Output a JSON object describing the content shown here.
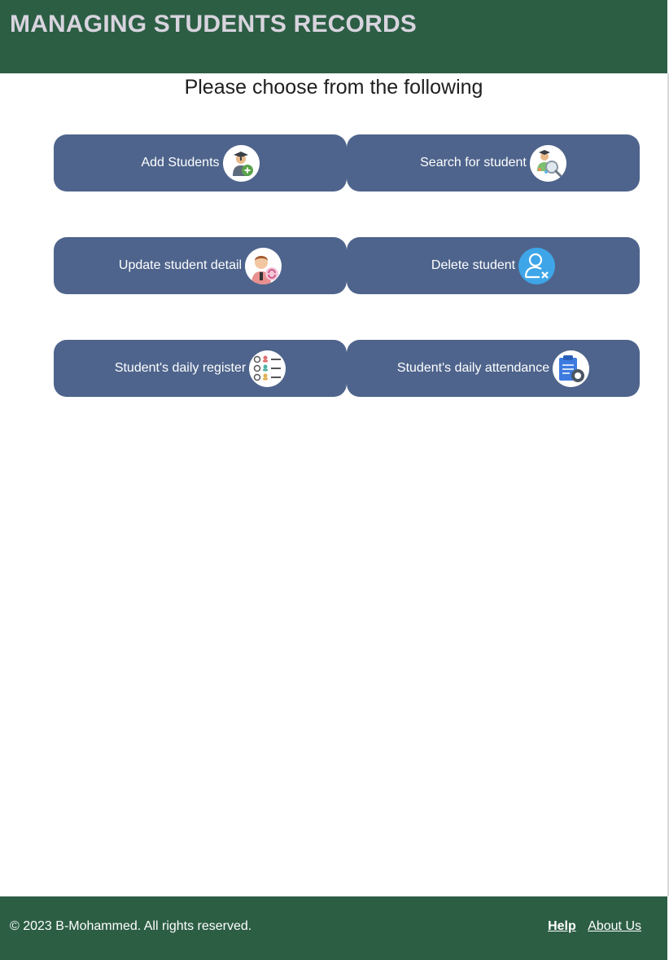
{
  "header": {
    "title": "MANAGING STUDENTS RECORDS"
  },
  "main": {
    "subtitle": "Please choose from the following",
    "buttons": [
      {
        "label": "Add Students",
        "icon": "student-add-icon"
      },
      {
        "label": "Search for student",
        "icon": "student-search-icon"
      },
      {
        "label": "Update student detail",
        "icon": "student-update-icon"
      },
      {
        "label": "Delete student",
        "icon": "user-delete-icon"
      },
      {
        "label": "Student's daily register",
        "icon": "checklist-icon"
      },
      {
        "label": "Student's daily attendance",
        "icon": "attendance-icon"
      }
    ]
  },
  "footer": {
    "copyright": "© 2023 B-Mohammed. All rights reserved.",
    "links": {
      "help": "Help",
      "about": "About Us"
    }
  },
  "colors": {
    "header_bg": "#2c5e44",
    "button_bg": "#4e648c",
    "footer_bg": "#2c5e44",
    "title_text": "#d8d4de"
  }
}
